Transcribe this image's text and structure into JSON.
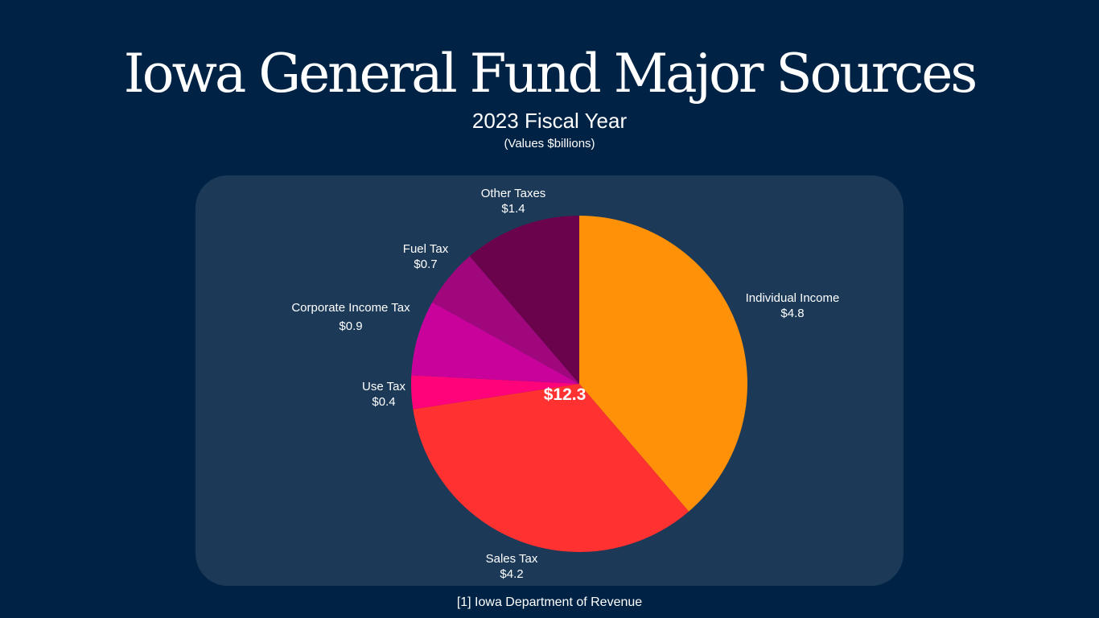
{
  "title": "Iowa General Fund Major Sources",
  "subtitle": "2023 Fiscal Year",
  "note": "(Values $billions)",
  "source": "[1] Iowa Department of Revenue",
  "chart_data": {
    "type": "pie",
    "center_label": "$12.3",
    "slices": [
      {
        "label": "Individual Income",
        "value_label": "$4.8",
        "value": 4.8,
        "color": "#ff9109"
      },
      {
        "label": "Sales Tax",
        "value_label": "$4.2",
        "value": 4.2,
        "color": "#ff3131"
      },
      {
        "label": "Use Tax",
        "value_label": "$0.4",
        "value": 0.4,
        "color": "#ff047a"
      },
      {
        "label": "Corporate Income Tax",
        "value_label": "$0.9",
        "value": 0.9,
        "color": "#c9029b"
      },
      {
        "label": "Fuel Tax",
        "value_label": "$0.7",
        "value": 0.7,
        "color": "#a0077c"
      },
      {
        "label": "Other Taxes",
        "value_label": "$1.4",
        "value": 1.4,
        "color": "#6b024c"
      }
    ]
  }
}
